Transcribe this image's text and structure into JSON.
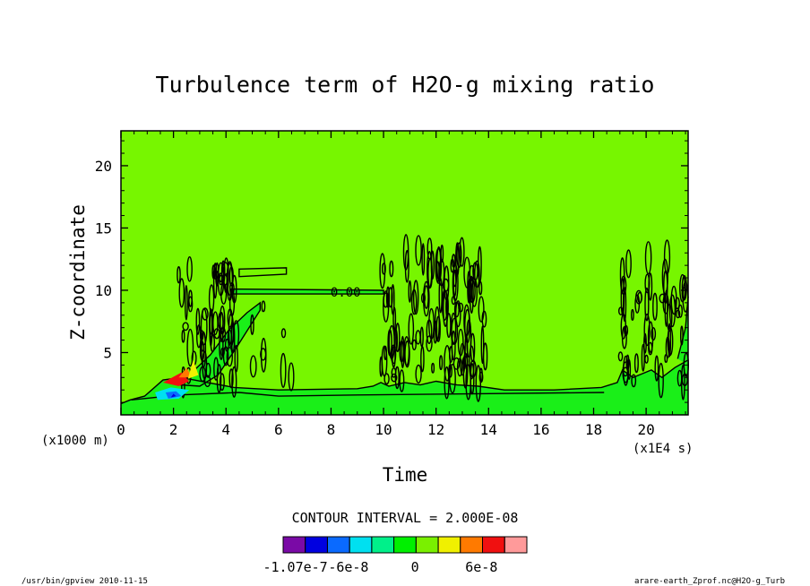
{
  "chart_data": {
    "type": "heatmap",
    "title": "Turbulence term of H2O-g mixing ratio",
    "xlabel": "Time",
    "ylabel": "Z-coordinate",
    "x_unit": "(x1E4 s)",
    "y_unit": "(x1000 m)",
    "xlim": [
      0,
      21.6
    ],
    "ylim": [
      0,
      22.8
    ],
    "x_ticks": [
      "0",
      "2",
      "4",
      "6",
      "8",
      "10",
      "12",
      "14",
      "16",
      "18",
      "20"
    ],
    "x_tick_values": [
      0,
      2,
      4,
      6,
      8,
      10,
      12,
      14,
      16,
      18,
      20
    ],
    "y_ticks": [
      "5",
      "10",
      "15",
      "20"
    ],
    "y_tick_values": [
      5,
      10,
      15,
      20
    ],
    "contour_interval_text": "CONTOUR INTERVAL = 2.000E-08",
    "contour_label": "0.00",
    "colorbar": {
      "colors": [
        "#7a0aa6",
        "#0000e0",
        "#0a6aff",
        "#00e0f0",
        "#00f08a",
        "#00f000",
        "#7af000",
        "#f0f000",
        "#ff7a00",
        "#f01010",
        "#ff9a9a"
      ],
      "labels": [
        "-1.07e-7",
        "-6e-8",
        "0",
        "6e-8"
      ],
      "label_values": [
        -1.07e-07,
        -6e-08,
        0,
        6e-08
      ]
    },
    "background_color": "#77f600",
    "band_color": "#1aef18"
  },
  "footer": {
    "left": "/usr/bin/gpview  2010-11-15",
    "right": "arare-earth_Zprof.nc@H2O-g_Turb"
  }
}
